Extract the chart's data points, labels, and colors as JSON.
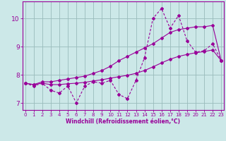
{
  "xlabel": "Windchill (Refroidissement éolien,°C)",
  "x": [
    0,
    1,
    2,
    3,
    4,
    5,
    6,
    7,
    8,
    9,
    10,
    11,
    12,
    13,
    14,
    15,
    16,
    17,
    18,
    19,
    20,
    21,
    22,
    23
  ],
  "line_jagged": [
    7.7,
    7.6,
    7.7,
    7.45,
    7.35,
    7.6,
    7.0,
    7.6,
    7.75,
    7.7,
    7.8,
    7.3,
    7.15,
    7.8,
    8.6,
    10.0,
    10.35,
    9.65,
    10.1,
    9.2,
    8.8,
    8.85,
    9.1,
    8.5
  ],
  "line_upper": [
    7.7,
    7.65,
    7.75,
    7.75,
    7.8,
    7.85,
    7.9,
    7.95,
    8.05,
    8.15,
    8.3,
    8.5,
    8.65,
    8.8,
    8.95,
    9.1,
    9.3,
    9.5,
    9.6,
    9.65,
    9.7,
    9.7,
    9.75,
    8.5
  ],
  "line_lower": [
    7.7,
    7.65,
    7.7,
    7.65,
    7.65,
    7.68,
    7.7,
    7.73,
    7.78,
    7.82,
    7.88,
    7.93,
    7.98,
    8.05,
    8.15,
    8.28,
    8.42,
    8.55,
    8.65,
    8.72,
    8.78,
    8.82,
    8.88,
    8.5
  ],
  "line_color": "#990099",
  "bg_color": "#cce8e8",
  "grid_color": "#99bbbb",
  "ylim": [
    6.75,
    10.6
  ],
  "yticks": [
    7,
    8,
    9,
    10
  ],
  "xlim": [
    -0.3,
    23.3
  ],
  "xticks": [
    0,
    1,
    2,
    3,
    4,
    5,
    6,
    7,
    8,
    9,
    10,
    11,
    12,
    13,
    14,
    15,
    16,
    17,
    18,
    19,
    20,
    21,
    22,
    23
  ]
}
